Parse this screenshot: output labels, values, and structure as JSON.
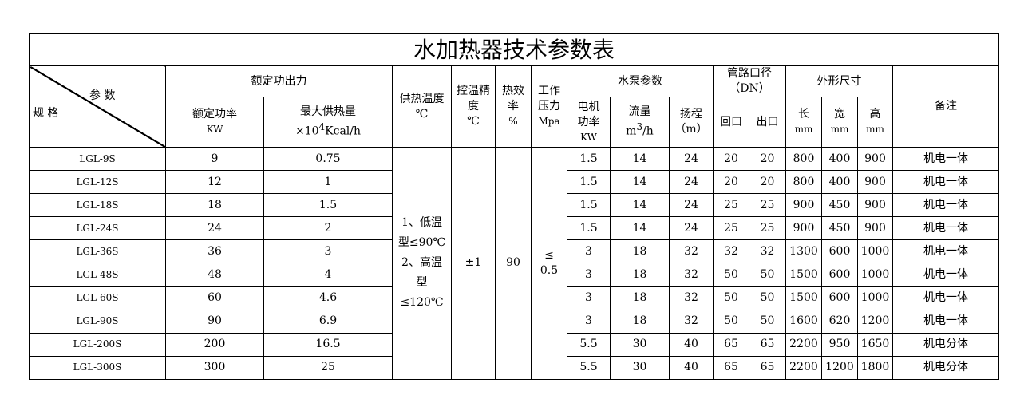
{
  "title": "水加热器技术参数表",
  "headers": {
    "spec_param": "参 数",
    "spec_model": "规 格",
    "rated_output": "额定功出力",
    "rated_power": "额定功率",
    "rated_power_unit": "KW",
    "max_heat": "最大供热量",
    "max_heat_unit_pre": "×10",
    "max_heat_unit_sup": "4",
    "max_heat_unit_post": "Kcal/h",
    "supply_temp": "供热温度",
    "supply_temp_unit": "℃",
    "temp_ctrl": "控温精度",
    "temp_ctrl_unit": "℃",
    "efficiency": "热效率",
    "efficiency_unit": "%",
    "pressure": "工作压力",
    "pressure_unit": "Mpa",
    "pump": "水泵参数",
    "motor_power": "电机功率",
    "motor_power_unit": "KW",
    "flow": "流量",
    "flow_unit_pre": "m",
    "flow_unit_sup": "3",
    "flow_unit_post": "/h",
    "head": "扬程",
    "head_unit": "（m）",
    "pipe": "管路口径",
    "pipe_unit": "（DN）",
    "inlet": "回口",
    "outlet": "出口",
    "dims": "外形尺寸",
    "length": "长",
    "width": "宽",
    "height": "高",
    "mm": "mm",
    "remark": "备注"
  },
  "merged": {
    "supply_temp": "1、低温型≤90℃ 2、高温型≤120℃",
    "temp_ctrl": "±1",
    "efficiency": "90",
    "pressure_sym": "≤",
    "pressure_val": "0.5"
  },
  "rows": [
    [
      "LGL-9S",
      "9",
      "0.75",
      "1.5",
      "14",
      "24",
      "20",
      "20",
      "800",
      "400",
      "900",
      "机电一体"
    ],
    [
      "LGL-12S",
      "12",
      "1",
      "1.5",
      "14",
      "24",
      "20",
      "20",
      "800",
      "400",
      "900",
      "机电一体"
    ],
    [
      "LGL-18S",
      "18",
      "1.5",
      "1.5",
      "14",
      "24",
      "25",
      "25",
      "900",
      "450",
      "900",
      "机电一体"
    ],
    [
      "LGL-24S",
      "24",
      "2",
      "1.5",
      "14",
      "24",
      "25",
      "25",
      "900",
      "450",
      "900",
      "机电一体"
    ],
    [
      "LGL-36S",
      "36",
      "3",
      "3",
      "18",
      "32",
      "32",
      "32",
      "1300",
      "600",
      "1000",
      "机电一体"
    ],
    [
      "LGL-48S",
      "48",
      "4",
      "3",
      "18",
      "32",
      "50",
      "50",
      "1500",
      "600",
      "1000",
      "机电一体"
    ],
    [
      "LGL-60S",
      "60",
      "4.6",
      "3",
      "18",
      "32",
      "50",
      "50",
      "1500",
      "600",
      "1000",
      "机电一体"
    ],
    [
      "LGL-90S",
      "90",
      "6.9",
      "3",
      "18",
      "32",
      "50",
      "50",
      "1600",
      "620",
      "1200",
      "机电一体"
    ],
    [
      "LGL-200S",
      "200",
      "16.5",
      "5.5",
      "30",
      "40",
      "65",
      "65",
      "2200",
      "950",
      "1650",
      "机电分体"
    ],
    [
      "LGL-300S",
      "300",
      "25",
      "5.5",
      "30",
      "40",
      "65",
      "65",
      "2200",
      "1200",
      "1800",
      "机电分体"
    ]
  ]
}
